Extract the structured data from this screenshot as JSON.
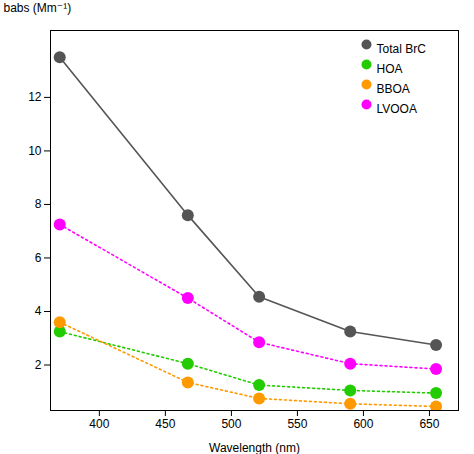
{
  "chart_data": {
    "type": "scatter",
    "xlabel": "Wavelength (nm)",
    "ylabel": "babs (Mm⁻¹)",
    "x": [
      370,
      467,
      521,
      590,
      655
    ],
    "series": [
      {
        "name": "Total BrC",
        "color": "#555555",
        "line_style": "solid",
        "marker": "circle",
        "values": [
          13.5,
          7.6,
          4.55,
          3.25,
          2.75
        ]
      },
      {
        "name": "HOA",
        "color": "#22cc00",
        "line_style": "dotted",
        "marker": "circle",
        "values": [
          3.25,
          2.05,
          1.25,
          1.05,
          0.95
        ]
      },
      {
        "name": "BBOA",
        "color": "#ff9900",
        "line_style": "dotted",
        "marker": "circle",
        "values": [
          3.6,
          1.35,
          0.75,
          0.55,
          0.45
        ]
      },
      {
        "name": "LVOOA",
        "color": "#ff00ff",
        "line_style": "dotted",
        "marker": "circle",
        "values": [
          7.25,
          4.5,
          2.85,
          2.05,
          1.85
        ]
      }
    ],
    "xlim": [
      363,
      672
    ],
    "ylim": [
      0.3,
      14.5
    ],
    "xticks": [
      400,
      450,
      500,
      550,
      600,
      650
    ],
    "yticks": [
      2,
      4,
      6,
      8,
      10,
      12
    ],
    "grid": false,
    "legend": "upper right"
  }
}
